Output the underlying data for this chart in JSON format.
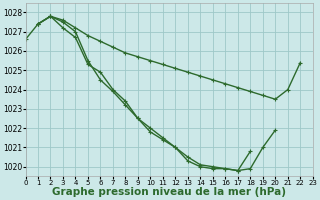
{
  "line1_x": [
    0,
    1,
    2,
    3,
    4,
    5,
    6,
    7,
    8,
    9,
    10,
    11,
    12,
    13,
    14,
    15,
    16,
    17,
    18,
    19,
    20,
    21,
    22
  ],
  "line1_y": [
    1026.6,
    1027.4,
    1027.8,
    1027.6,
    1027.2,
    1026.8,
    1026.5,
    1026.2,
    1025.9,
    1025.7,
    1025.5,
    1025.3,
    1025.1,
    1024.9,
    1024.7,
    1024.5,
    1024.3,
    1024.1,
    1023.9,
    1023.7,
    1023.5,
    1024.0,
    1025.4
  ],
  "line2_x": [
    1,
    2,
    3,
    4,
    5,
    6,
    7,
    8,
    9,
    10,
    11,
    12,
    13,
    14,
    15,
    16,
    17,
    18,
    19,
    20
  ],
  "line2_y": [
    1027.4,
    1027.8,
    1027.2,
    1026.7,
    1025.3,
    1024.9,
    1024.0,
    1023.4,
    1022.5,
    1021.8,
    1021.4,
    1021.0,
    1020.3,
    1020.0,
    1019.9,
    1019.9,
    1019.8,
    1019.9,
    1021.0,
    1021.9
  ],
  "line3_x": [
    1,
    2,
    3,
    4,
    5,
    6,
    7,
    8,
    9,
    10,
    11,
    12,
    13,
    14,
    15,
    16,
    17,
    18
  ],
  "line3_y": [
    1027.4,
    1027.8,
    1027.5,
    1027.0,
    1025.5,
    1024.5,
    1023.9,
    1023.2,
    1022.5,
    1022.0,
    1021.5,
    1021.0,
    1020.5,
    1020.1,
    1020.0,
    1019.9,
    1019.8,
    1020.8
  ],
  "line_color": "#2d6a2d",
  "markersize": 3.5,
  "linewidth": 1.0,
  "background_color": "#cce8e8",
  "grid_color": "#9ec8c8",
  "xlabel": "Graphe pression niveau de la mer (hPa)",
  "xlabel_fontsize": 7.5,
  "yticks": [
    1020,
    1021,
    1022,
    1023,
    1024,
    1025,
    1026,
    1027,
    1028
  ],
  "xticks": [
    0,
    1,
    2,
    3,
    4,
    5,
    6,
    7,
    8,
    9,
    10,
    11,
    12,
    13,
    14,
    15,
    16,
    17,
    18,
    19,
    20,
    21,
    22,
    23
  ],
  "xlim": [
    0,
    23
  ],
  "ylim": [
    1019.5,
    1028.5
  ]
}
